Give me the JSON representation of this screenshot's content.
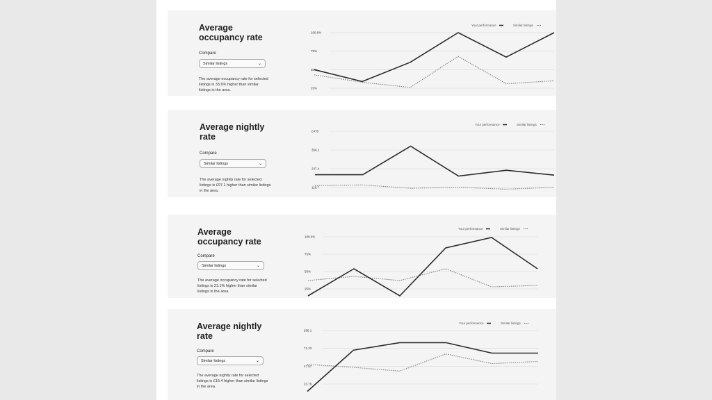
{
  "panels": [
    {
      "title_line1": "Average",
      "title_line2": "occupancy rate",
      "compare_label": "Compare",
      "select_value": "Similar listings",
      "description": "The average occupancy rate for selected listings is 33.6% higher than similar listings in the area.",
      "legend": {
        "yours": "Your performance",
        "similar": "Similar listings"
      }
    },
    {
      "title_line1": "Average nightly",
      "title_line2": "rate",
      "compare_label": "Compare",
      "select_value": "Similar listings",
      "description": "The average nightly rate for selected listings is £97.1 higher than similar listings in the area.",
      "legend": {
        "yours": "Your performance",
        "similar": "Similar listings"
      }
    },
    {
      "title_line1": "Average",
      "title_line2": "occupancy rate",
      "compare_label": "Compare",
      "select_value": "Similar listings",
      "description": "The average occupancy rate for selected listings is 21.1% higher than similar listings in the area.",
      "legend": {
        "yours": "Your performance",
        "similar": "Similar listings"
      }
    },
    {
      "title_line1": "Average nightly",
      "title_line2": "rate",
      "compare_label": "Compare",
      "select_value": "Similar listings",
      "description": "The average nightly rate for selected listings is £15.4 higher than similar listings in the area.",
      "legend": {
        "yours": "Your performance",
        "similar": "Similar listings"
      }
    }
  ],
  "chart_data": [
    {
      "type": "line",
      "ytick_labels": [
        "100.0%",
        "75%",
        "50%",
        "25%"
      ],
      "ylim": [
        25,
        100
      ],
      "grid": true,
      "legend_position": "top-right",
      "series": [
        {
          "name": "Your performance",
          "style": "solid",
          "values": [
            50,
            34,
            60,
            100,
            67,
            100
          ]
        },
        {
          "name": "Similar listings",
          "style": "dotted",
          "values": [
            43,
            33,
            26,
            68,
            31,
            35
          ]
        }
      ]
    },
    {
      "type": "line",
      "ytick_labels": [
        "£476",
        "356.1",
        "237.4",
        "118.7"
      ],
      "ylim": [
        118.7,
        476
      ],
      "grid": true,
      "legend_position": "top-right",
      "series": [
        {
          "name": "Your performance",
          "style": "solid",
          "values": [
            200,
            200,
            381,
            191,
            228,
            197
          ]
        },
        {
          "name": "Similar listings",
          "style": "dotted",
          "values": [
            131,
            135,
            114,
            120,
            108,
            120
          ]
        }
      ]
    },
    {
      "type": "line",
      "ytick_labels": [
        "100.0%",
        "75%",
        "50%",
        "25%"
      ],
      "ylim": [
        25,
        100
      ],
      "grid": true,
      "legend_position": "top-right",
      "series": [
        {
          "name": "Your performance",
          "style": "solid",
          "values": [
            15,
            54,
            15,
            84,
            99,
            54
          ]
        },
        {
          "name": "Similar listings",
          "style": "dotted",
          "values": [
            37,
            43,
            37,
            54,
            28,
            30
          ]
        }
      ]
    },
    {
      "type": "line",
      "ytick_labels": [
        "£95.1",
        "71.33",
        "47.57",
        "23.79"
      ],
      "ylim": [
        23.79,
        95.1
      ],
      "grid": true,
      "legend_position": "top-right",
      "series": [
        {
          "name": "Your performance",
          "style": "solid",
          "values": [
            14,
            69,
            79,
            79,
            65,
            65
          ]
        },
        {
          "name": "Similar listings",
          "style": "dotted",
          "values": [
            50,
            46,
            41,
            64,
            51,
            54
          ]
        }
      ]
    }
  ]
}
